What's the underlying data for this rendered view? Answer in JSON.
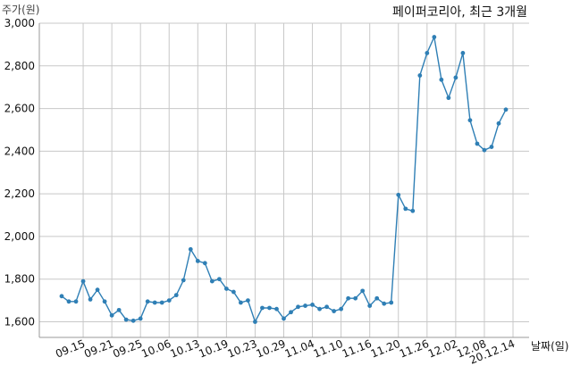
{
  "chart_data": {
    "type": "line",
    "title": "페이퍼코리아, 최근 3개월",
    "ylabel": "주가(원)",
    "xlabel": "날짜(일)",
    "ylim": [
      1500,
      3000
    ],
    "yticks": [
      "1,600",
      "1,800",
      "2,000",
      "2,200",
      "2,400",
      "2,600",
      "2,800",
      "3,000"
    ],
    "ytick_values": [
      1600,
      1800,
      2000,
      2200,
      2400,
      2600,
      2800,
      3000
    ],
    "xticks": [
      "09.15",
      "09.21",
      "09.25",
      "10.06",
      "10.13",
      "10.19",
      "10.23",
      "10.29",
      "11.04",
      "11.10",
      "11.16",
      "11.20",
      "11.26",
      "12.02",
      "12.08",
      "20.12.14"
    ],
    "xtick_indices": [
      3,
      7,
      11,
      15,
      19,
      23,
      27,
      31,
      35,
      39,
      43,
      47,
      51,
      55,
      59,
      63
    ],
    "grid": true,
    "color": "#2f7fb5",
    "series": [
      {
        "values": [
          1720,
          1695,
          1695,
          1790,
          1705,
          1750,
          1695,
          1630,
          1655,
          1610,
          1605,
          1615,
          1695,
          1690,
          1690,
          1700,
          1725,
          1795,
          1940,
          1885,
          1875,
          1790,
          1800,
          1755,
          1740,
          1690,
          1700,
          1600,
          1665,
          1665,
          1660,
          1615,
          1645,
          1670,
          1675,
          1680,
          1660,
          1670,
          1650,
          1660,
          1710,
          1710,
          1745,
          1675,
          1710,
          1685,
          1690,
          2195,
          2130,
          2120,
          2755,
          2860,
          2935,
          2735,
          2650,
          2745,
          2860,
          2545,
          2435,
          2405,
          2420,
          2530,
          2595
        ]
      }
    ]
  }
}
